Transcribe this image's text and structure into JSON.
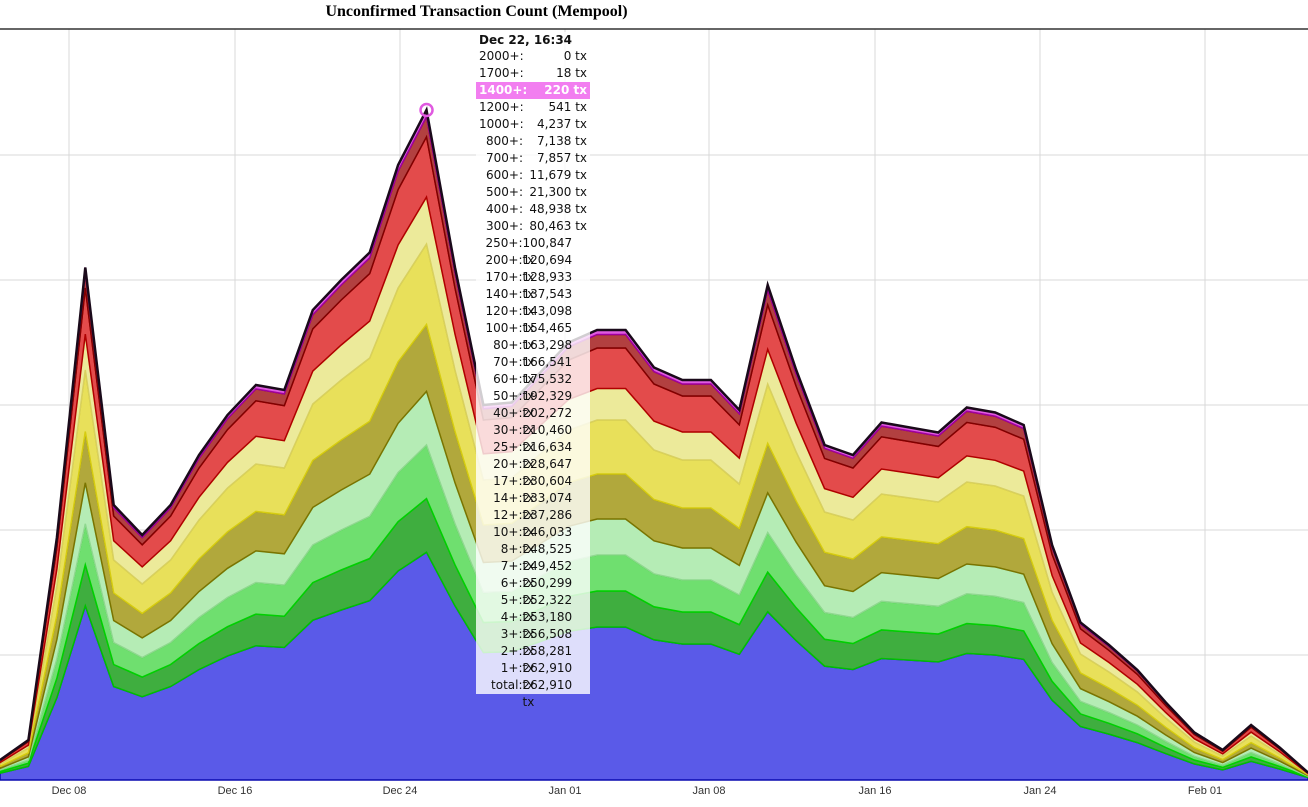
{
  "title": "Unconfirmed Transaction Count (Mempool)",
  "chart_data": {
    "type": "area",
    "stacked": true,
    "title": "Unconfirmed Transaction Count (Mempool)",
    "x_ticks": [
      "Dec 08",
      "Dec 16",
      "Dec 24",
      "Jan 01",
      "Jan 08",
      "Jan 16",
      "Jan 24",
      "Feb 01"
    ],
    "grid": true,
    "y_axis_visible": false,
    "band_thresholds_sat_per_byte": [
      "2000+",
      "1700+",
      "1400+",
      "1200+",
      "1000+",
      "800+",
      "700+",
      "600+",
      "500+",
      "400+",
      "300+",
      "250+",
      "200+",
      "170+",
      "140+",
      "120+",
      "100+",
      "80+",
      "70+",
      "60+",
      "50+",
      "40+",
      "30+",
      "25+",
      "20+",
      "17+",
      "14+",
      "12+",
      "10+",
      "8+",
      "7+",
      "6+",
      "5+",
      "4+",
      "3+",
      "2+",
      "1+"
    ],
    "band_colors": {
      "1+": "#5a5ae8",
      "5+": "#3fbd3f",
      "10+": "#9fdf9f",
      "20+": "#b3b23a",
      "40+": "#e8e05a",
      "80+": "#e34b4b",
      "400+": "#b24040",
      "1400+": "#e05ae0"
    },
    "total_estimated": [
      8000,
      16000,
      97000,
      205000,
      110000,
      98000,
      110000,
      130000,
      146000,
      158000,
      156000,
      188000,
      200000,
      211000,
      246000,
      268000,
      205000,
      150000,
      151000,
      163000,
      175000,
      180000,
      180000,
      165000,
      160000,
      160000,
      148000,
      198000,
      164000,
      134000,
      130000,
      143000,
      141000,
      139000,
      149000,
      147000,
      142000,
      94000,
      63000,
      54000,
      44000,
      31000,
      19000,
      12000,
      22000,
      13000,
      3000
    ],
    "hover_point": {
      "time": "Dec 22, 16:34",
      "total": "262,910 tx",
      "highlighted": "1400+"
    },
    "tooltip_rows": [
      {
        "label": "2000+:",
        "value": "0 tx"
      },
      {
        "label": "1700+:",
        "value": "18 tx"
      },
      {
        "label": "1400+:",
        "value": "220 tx"
      },
      {
        "label": "1200+:",
        "value": "541 tx"
      },
      {
        "label": "1000+:",
        "value": "4,237 tx"
      },
      {
        "label": "800+:",
        "value": "7,138 tx"
      },
      {
        "label": "700+:",
        "value": "7,857 tx"
      },
      {
        "label": "600+:",
        "value": "11,679 tx"
      },
      {
        "label": "500+:",
        "value": "21,300 tx"
      },
      {
        "label": "400+:",
        "value": "48,938 tx"
      },
      {
        "label": "300+:",
        "value": "80,463 tx"
      },
      {
        "label": "250+:",
        "value": "100,847 tx"
      },
      {
        "label": "200+:",
        "value": "120,694 tx"
      },
      {
        "label": "170+:",
        "value": "128,933 tx"
      },
      {
        "label": "140+:",
        "value": "137,543 tx"
      },
      {
        "label": "120+:",
        "value": "143,098 tx"
      },
      {
        "label": "100+:",
        "value": "154,465 tx"
      },
      {
        "label": "80+:",
        "value": "163,298 tx"
      },
      {
        "label": "70+:",
        "value": "166,541 tx"
      },
      {
        "label": "60+:",
        "value": "175,532 tx"
      },
      {
        "label": "50+:",
        "value": "192,329 tx"
      },
      {
        "label": "40+:",
        "value": "202,272 tx"
      },
      {
        "label": "30+:",
        "value": "210,460 tx"
      },
      {
        "label": "25+:",
        "value": "216,634 tx"
      },
      {
        "label": "20+:",
        "value": "228,647 tx"
      },
      {
        "label": "17+:",
        "value": "230,604 tx"
      },
      {
        "label": "14+:",
        "value": "233,074 tx"
      },
      {
        "label": "12+:",
        "value": "237,286 tx"
      },
      {
        "label": "10+:",
        "value": "246,033 tx"
      },
      {
        "label": "8+:",
        "value": "248,525 tx"
      },
      {
        "label": "7+:",
        "value": "249,452 tx"
      },
      {
        "label": "6+:",
        "value": "250,299 tx"
      },
      {
        "label": "5+:",
        "value": "252,322 tx"
      },
      {
        "label": "4+:",
        "value": "253,180 tx"
      },
      {
        "label": "3+:",
        "value": "256,508 tx"
      },
      {
        "label": "2+:",
        "value": "258,281 tx"
      },
      {
        "label": "1+:",
        "value": "262,910 tx"
      },
      {
        "label": "total:",
        "value": "262,910 tx"
      }
    ]
  }
}
